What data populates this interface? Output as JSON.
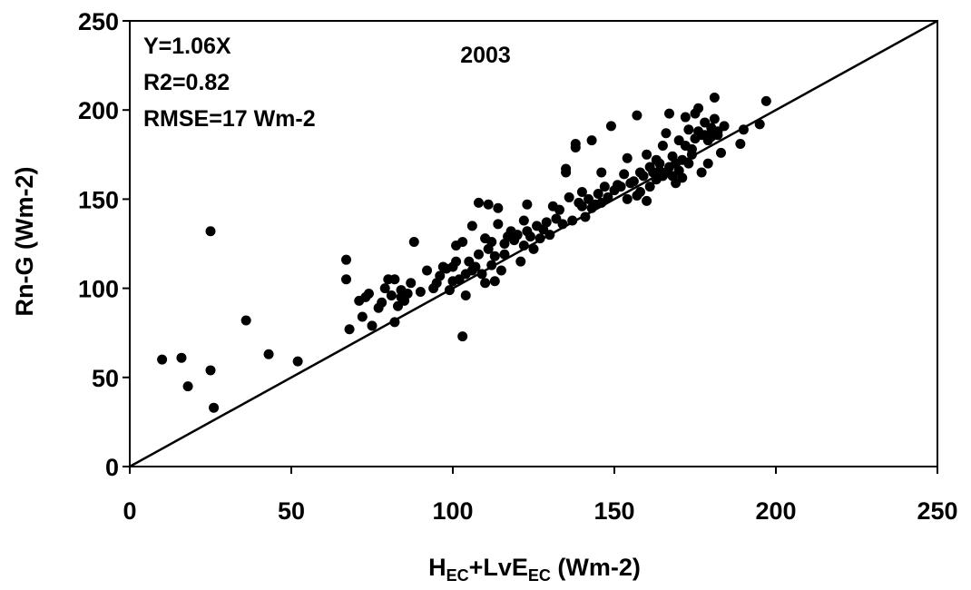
{
  "chart_data": {
    "type": "scatter",
    "title": "2003",
    "xlabel": {
      "base1": "H",
      "sub1": "EC",
      "mid": "+LvE",
      "sub2": "EC",
      "tail": " (Wm-2)"
    },
    "ylabel": "Rn-G (Wm-2)",
    "xlim": [
      0,
      250
    ],
    "ylim": [
      0,
      250
    ],
    "x_ticks": [
      "0",
      "50",
      "100",
      "150",
      "200",
      "250"
    ],
    "y_ticks": [
      "0",
      "50",
      "100",
      "150",
      "200",
      "250"
    ],
    "x_tick_values": [
      0,
      50,
      100,
      150,
      200,
      250
    ],
    "y_tick_values": [
      0,
      50,
      100,
      150,
      200,
      250
    ],
    "annotations": [
      "Y=1.06X",
      "R2=0.82",
      "RMSE=17 Wm-2"
    ],
    "grid": false,
    "reference_line": {
      "from": [
        0,
        0
      ],
      "to": [
        250,
        250
      ]
    },
    "marker_color": "#000000",
    "points": [
      [
        10,
        60
      ],
      [
        16,
        61
      ],
      [
        18,
        45
      ],
      [
        25,
        54
      ],
      [
        26,
        33
      ],
      [
        25,
        132
      ],
      [
        36,
        82
      ],
      [
        43,
        63
      ],
      [
        52,
        59
      ],
      [
        67,
        105
      ],
      [
        67,
        116
      ],
      [
        68,
        77
      ],
      [
        71,
        93
      ],
      [
        72,
        84
      ],
      [
        73,
        95
      ],
      [
        74,
        97
      ],
      [
        75,
        79
      ],
      [
        77,
        89
      ],
      [
        78,
        92
      ],
      [
        79,
        100
      ],
      [
        80,
        105
      ],
      [
        81,
        96
      ],
      [
        82,
        81
      ],
      [
        82,
        105
      ],
      [
        83,
        90
      ],
      [
        84,
        95
      ],
      [
        84,
        99
      ],
      [
        85,
        93
      ],
      [
        86,
        97
      ],
      [
        87,
        103
      ],
      [
        88,
        126
      ],
      [
        90,
        98
      ],
      [
        92,
        110
      ],
      [
        94,
        100
      ],
      [
        95,
        103
      ],
      [
        96,
        107
      ],
      [
        97,
        112
      ],
      [
        98,
        111
      ],
      [
        99,
        99
      ],
      [
        100,
        104
      ],
      [
        100,
        112
      ],
      [
        101,
        124
      ],
      [
        101,
        115
      ],
      [
        102,
        105
      ],
      [
        103,
        126
      ],
      [
        103,
        73
      ],
      [
        104,
        108
      ],
      [
        104,
        96
      ],
      [
        105,
        115
      ],
      [
        106,
        110
      ],
      [
        106,
        135
      ],
      [
        107,
        112
      ],
      [
        108,
        148
      ],
      [
        108,
        119
      ],
      [
        109,
        108
      ],
      [
        110,
        103
      ],
      [
        110,
        128
      ],
      [
        111,
        147
      ],
      [
        111,
        122
      ],
      [
        112,
        113
      ],
      [
        112,
        126
      ],
      [
        113,
        104
      ],
      [
        113,
        118
      ],
      [
        114,
        136
      ],
      [
        114,
        145
      ],
      [
        115,
        110
      ],
      [
        116,
        125
      ],
      [
        116,
        119
      ],
      [
        117,
        129
      ],
      [
        118,
        132
      ],
      [
        119,
        127
      ],
      [
        120,
        130
      ],
      [
        121,
        115
      ],
      [
        122,
        124
      ],
      [
        122,
        138
      ],
      [
        123,
        132
      ],
      [
        123,
        147
      ],
      [
        124,
        129
      ],
      [
        125,
        122
      ],
      [
        126,
        135
      ],
      [
        127,
        128
      ],
      [
        128,
        133
      ],
      [
        129,
        137
      ],
      [
        130,
        130
      ],
      [
        131,
        146
      ],
      [
        132,
        139
      ],
      [
        133,
        144
      ],
      [
        134,
        136
      ],
      [
        135,
        167
      ],
      [
        135,
        165
      ],
      [
        136,
        151
      ],
      [
        137,
        138
      ],
      [
        138,
        181
      ],
      [
        138,
        179
      ],
      [
        139,
        148
      ],
      [
        140,
        146
      ],
      [
        140,
        154
      ],
      [
        141,
        140
      ],
      [
        142,
        150
      ],
      [
        143,
        183
      ],
      [
        143,
        145
      ],
      [
        144,
        147
      ],
      [
        145,
        153
      ],
      [
        146,
        148
      ],
      [
        146,
        165
      ],
      [
        147,
        157
      ],
      [
        148,
        151
      ],
      [
        149,
        191
      ],
      [
        150,
        155
      ],
      [
        151,
        158
      ],
      [
        152,
        157
      ],
      [
        153,
        164
      ],
      [
        154,
        150
      ],
      [
        154,
        173
      ],
      [
        155,
        159
      ],
      [
        156,
        160
      ],
      [
        157,
        152
      ],
      [
        157,
        197
      ],
      [
        158,
        154
      ],
      [
        158,
        165
      ],
      [
        159,
        163
      ],
      [
        160,
        149
      ],
      [
        160,
        175
      ],
      [
        161,
        168
      ],
      [
        161,
        157
      ],
      [
        162,
        165
      ],
      [
        163,
        161
      ],
      [
        163,
        172
      ],
      [
        164,
        166
      ],
      [
        164,
        170
      ],
      [
        165,
        163
      ],
      [
        165,
        180
      ],
      [
        166,
        165
      ],
      [
        166,
        187
      ],
      [
        167,
        198
      ],
      [
        167,
        168
      ],
      [
        168,
        174
      ],
      [
        168,
        163
      ],
      [
        169,
        159
      ],
      [
        169,
        170
      ],
      [
        170,
        166
      ],
      [
        170,
        183
      ],
      [
        171,
        172
      ],
      [
        171,
        162
      ],
      [
        172,
        180
      ],
      [
        172,
        196
      ],
      [
        173,
        170
      ],
      [
        173,
        189
      ],
      [
        174,
        178
      ],
      [
        174,
        175
      ],
      [
        175,
        184
      ],
      [
        175,
        198
      ],
      [
        176,
        201
      ],
      [
        176,
        188
      ],
      [
        177,
        165
      ],
      [
        177,
        186
      ],
      [
        178,
        186
      ],
      [
        178,
        193
      ],
      [
        179,
        170
      ],
      [
        179,
        183
      ],
      [
        180,
        190
      ],
      [
        180,
        185
      ],
      [
        181,
        195
      ],
      [
        181,
        207
      ],
      [
        182,
        188
      ],
      [
        182,
        186
      ],
      [
        183,
        176
      ],
      [
        184,
        191
      ],
      [
        189,
        181
      ],
      [
        190,
        189
      ],
      [
        195,
        192
      ],
      [
        197,
        205
      ]
    ]
  }
}
